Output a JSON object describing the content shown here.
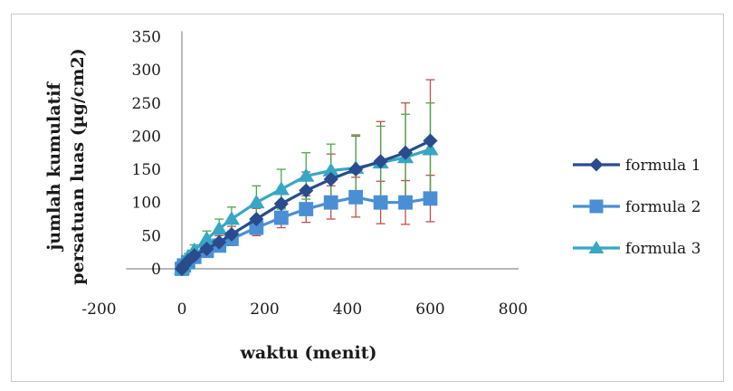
{
  "chart_data": {
    "type": "line",
    "title": "",
    "xlabel": "waktu (menit)",
    "ylabel_lines": [
      "jumlah kumulatif",
      "persatuan luas (µg/cm2)"
    ],
    "xlim": [
      -200,
      800
    ],
    "ylim": [
      0,
      350
    ],
    "x_ticks": [
      -200,
      0,
      200,
      400,
      600,
      800
    ],
    "x_tick_labels": [
      "-200",
      "0",
      "200",
      "400",
      "600",
      "800"
    ],
    "y_ticks": [
      0,
      50,
      100,
      150,
      200,
      250,
      300,
      350
    ],
    "y_tick_labels": [
      "0",
      "50",
      "100",
      "150",
      "200",
      "250",
      "300",
      "350"
    ],
    "grid": false,
    "legend_position": "right",
    "x": [
      0,
      5,
      15,
      30,
      60,
      90,
      120,
      180,
      240,
      300,
      360,
      420,
      480,
      540,
      600
    ],
    "series": [
      {
        "name": "formula 1",
        "marker": "diamond",
        "color": "#2a4c8c",
        "error_color": "#c0504d",
        "values": [
          0,
          5,
          12,
          20,
          30,
          40,
          52,
          75,
          98,
          118,
          135,
          150,
          162,
          175,
          193
        ],
        "errors": [
          0,
          2,
          4,
          5,
          8,
          10,
          12,
          16,
          22,
          28,
          38,
          50,
          60,
          75,
          92
        ]
      },
      {
        "name": "formula 2",
        "marker": "square",
        "color": "#4a8fd4",
        "error_color": "#c0504d",
        "values": [
          0,
          5,
          10,
          18,
          27,
          35,
          45,
          62,
          77,
          90,
          100,
          108,
          100,
          100,
          106
        ],
        "errors": [
          0,
          2,
          3,
          5,
          6,
          8,
          10,
          12,
          15,
          20,
          25,
          30,
          32,
          33,
          35
        ]
      },
      {
        "name": "formula 3",
        "marker": "triangle",
        "color": "#37a7c4",
        "error_color": "#4aa84a",
        "values": [
          0,
          8,
          18,
          28,
          45,
          60,
          75,
          100,
          120,
          140,
          148,
          152,
          160,
          168,
          180
        ],
        "errors": [
          0,
          3,
          5,
          8,
          12,
          15,
          18,
          25,
          30,
          35,
          40,
          50,
          55,
          65,
          70
        ]
      }
    ]
  }
}
